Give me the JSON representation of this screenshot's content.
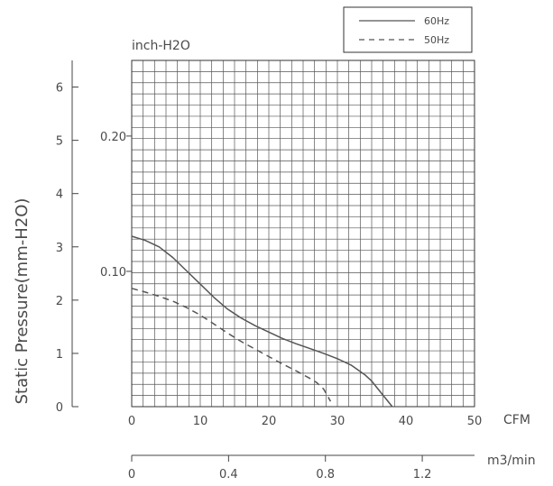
{
  "chart_data": {
    "type": "line",
    "x_axis": {
      "label": "CFM",
      "ticks": [
        "0",
        "10",
        "20",
        "30",
        "40",
        "50"
      ],
      "range": [
        0,
        50
      ]
    },
    "x2_axis": {
      "label": "m3/min",
      "ticks": [
        "0",
        "0.4",
        "0.8",
        "1.2"
      ],
      "range": [
        0,
        1.4158
      ]
    },
    "y_axis": {
      "label": "Static Pressure(mm-H2O)",
      "ticks": [
        "0",
        "1",
        "2",
        "3",
        "4",
        "5",
        "6"
      ],
      "range": [
        0,
        6.5
      ]
    },
    "y2_axis": {
      "label": "inch-H2O",
      "ticks": [
        "0.10",
        "0.20"
      ]
    },
    "grid": true,
    "legend_position": "top-right",
    "series": [
      {
        "name": "60Hz",
        "style": "solid",
        "color": "#555555",
        "x": [
          0,
          2,
          4,
          6,
          8,
          10,
          12,
          14,
          16,
          18,
          20,
          22,
          24,
          26,
          28,
          30,
          32,
          34,
          35,
          36,
          37,
          38
        ],
        "y": [
          3.2,
          3.12,
          3.0,
          2.8,
          2.55,
          2.3,
          2.05,
          1.83,
          1.66,
          1.52,
          1.4,
          1.28,
          1.18,
          1.09,
          1.0,
          0.9,
          0.78,
          0.6,
          0.48,
          0.32,
          0.16,
          0.0
        ]
      },
      {
        "name": "50Hz",
        "style": "dashed",
        "color": "#555555",
        "x": [
          0,
          2,
          4,
          6,
          8,
          10,
          12,
          14,
          16,
          18,
          20,
          22,
          24,
          26,
          27,
          28,
          29
        ],
        "y": [
          2.22,
          2.15,
          2.07,
          1.98,
          1.86,
          1.72,
          1.55,
          1.38,
          1.22,
          1.08,
          0.94,
          0.8,
          0.67,
          0.53,
          0.45,
          0.33,
          0.1
        ]
      }
    ]
  }
}
